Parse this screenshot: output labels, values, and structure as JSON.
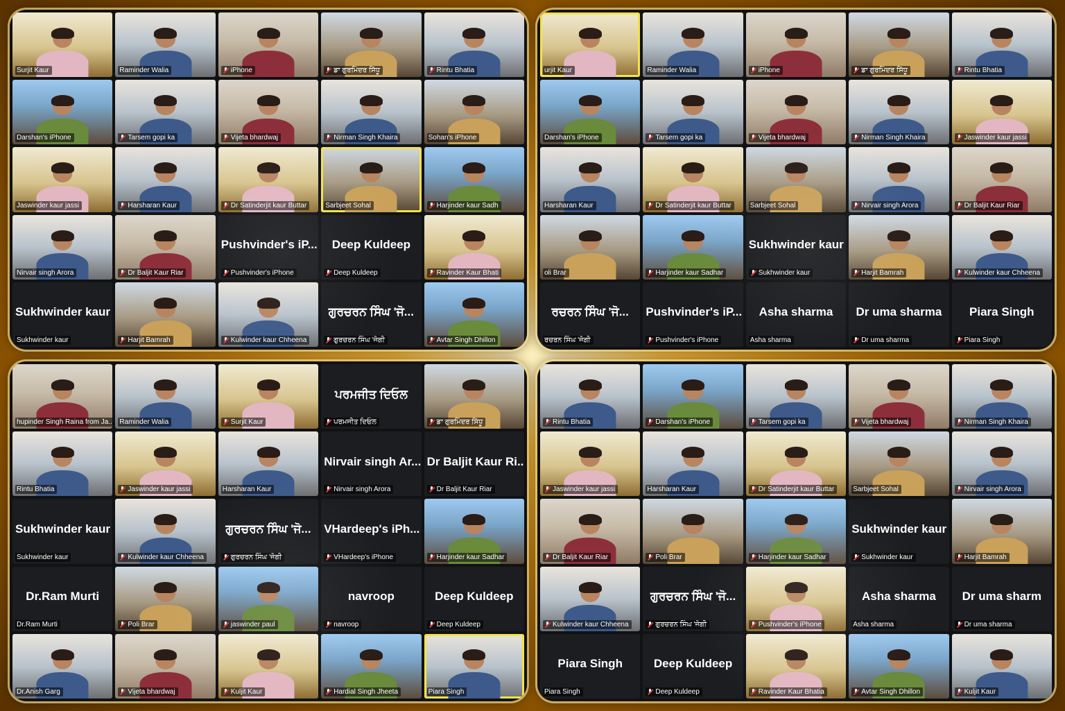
{
  "panels": [
    {
      "tiles": [
        {
          "type": "video",
          "name": "Surjit Kaur",
          "muted": false,
          "v": "v4"
        },
        {
          "type": "video",
          "name": "Raminder Walia",
          "muted": false,
          "v": "v2"
        },
        {
          "type": "video",
          "name": "iPhone",
          "muted": true,
          "v": "v1"
        },
        {
          "type": "video",
          "name": "ਡਾ ਗੁਰਮਿੰਦਰ ਸਿੱਧੂ",
          "muted": true,
          "v": "v3"
        },
        {
          "type": "video",
          "name": "Rintu Bhatia",
          "muted": true,
          "v": "v2"
        },
        {
          "type": "video",
          "name": "Darshan's iPhone",
          "muted": false,
          "v": "v5"
        },
        {
          "type": "video",
          "name": "Tarsem gopi ka",
          "muted": true,
          "v": "v2"
        },
        {
          "type": "video",
          "name": "Vijeta bhardwaj",
          "muted": true,
          "v": "v1"
        },
        {
          "type": "video",
          "name": "Nirman Singh Khaira",
          "muted": true,
          "v": "v2"
        },
        {
          "type": "video",
          "name": "Sohan's iPhone",
          "muted": false,
          "v": "v3"
        },
        {
          "type": "video",
          "name": "Jaswinder kaur jassi",
          "muted": false,
          "v": "v4"
        },
        {
          "type": "video",
          "name": "Harsharan Kaur",
          "muted": true,
          "v": "v2"
        },
        {
          "type": "video",
          "name": "Dr Satinderjit kaur Buttar",
          "muted": true,
          "v": "v4"
        },
        {
          "type": "video",
          "name": "Sarbjeet Sohal",
          "muted": false,
          "v": "v3",
          "active": true
        },
        {
          "type": "video",
          "name": "Harjinder kaur Sadh",
          "muted": true,
          "v": "v5"
        },
        {
          "type": "video",
          "name": "Nirvair singh Arora",
          "muted": false,
          "v": "v2"
        },
        {
          "type": "video",
          "name": "Dr Baljit Kaur Riar",
          "muted": true,
          "v": "v1"
        },
        {
          "type": "name",
          "big": "Pushvinder's iP...",
          "name": "Pushvinder's iPhone",
          "muted": true
        },
        {
          "type": "name",
          "big": "Deep Kuldeep",
          "name": "Deep Kuldeep",
          "muted": true
        },
        {
          "type": "video",
          "name": "Ravinder Kaur Bhati",
          "muted": true,
          "v": "v4"
        },
        {
          "type": "name",
          "big": "Sukhwinder kaur",
          "name": "Sukhwinder kaur",
          "muted": false
        },
        {
          "type": "video",
          "name": "Harjit Bamrah",
          "muted": true,
          "v": "v3"
        },
        {
          "type": "video",
          "name": "Kulwinder kaur Chheena",
          "muted": true,
          "v": "v2"
        },
        {
          "type": "name",
          "big": "ਗੁਰਚਰਨ ਸਿੰਘ 'ਜੋ...",
          "name": "ਗੁਰਚਰਨ ਸਿੰਘ 'ਜੋਗੀ",
          "muted": true
        },
        {
          "type": "video",
          "name": "Avtar Singh Dhillon",
          "muted": true,
          "v": "v5"
        }
      ]
    },
    {
      "tiles": [
        {
          "type": "video",
          "name": "urjit Kaur",
          "muted": false,
          "v": "v4",
          "active": true
        },
        {
          "type": "video",
          "name": "Raminder Walia",
          "muted": false,
          "v": "v2"
        },
        {
          "type": "video",
          "name": "iPhone",
          "muted": true,
          "v": "v1"
        },
        {
          "type": "video",
          "name": "ਡਾ ਗੁਰਮਿੰਦਰ ਸਿੱਧੂ",
          "muted": true,
          "v": "v3"
        },
        {
          "type": "video",
          "name": "Rintu Bhatia",
          "muted": true,
          "v": "v2"
        },
        {
          "type": "video",
          "name": "Darshan's iPhone",
          "muted": false,
          "v": "v5"
        },
        {
          "type": "video",
          "name": "Tarsem gopi ka",
          "muted": true,
          "v": "v2"
        },
        {
          "type": "video",
          "name": "Vijeta bhardwaj",
          "muted": true,
          "v": "v1"
        },
        {
          "type": "video",
          "name": "Nirman Singh Khaira",
          "muted": true,
          "v": "v2"
        },
        {
          "type": "video",
          "name": "Jaswinder kaur jassi",
          "muted": true,
          "v": "v4"
        },
        {
          "type": "video",
          "name": "Harsharan Kaur",
          "muted": false,
          "v": "v2"
        },
        {
          "type": "video",
          "name": "Dr Satinderjit kaur Buttar",
          "muted": true,
          "v": "v4"
        },
        {
          "type": "video",
          "name": "Sarbjeet Sohal",
          "muted": false,
          "v": "v3"
        },
        {
          "type": "video",
          "name": "Nirvair singh Arora",
          "muted": true,
          "v": "v2"
        },
        {
          "type": "video",
          "name": "Dr Baljit Kaur Riar",
          "muted": true,
          "v": "v1"
        },
        {
          "type": "video",
          "name": "oli Brar",
          "muted": false,
          "v": "v3"
        },
        {
          "type": "video",
          "name": "Harjinder kaur Sadhar",
          "muted": true,
          "v": "v5"
        },
        {
          "type": "name",
          "big": "Sukhwinder kaur",
          "name": "Sukhwinder kaur",
          "muted": true
        },
        {
          "type": "video",
          "name": "Harjit Bamrah",
          "muted": true,
          "v": "v3"
        },
        {
          "type": "video",
          "name": "Kulwinder kaur Chheena",
          "muted": true,
          "v": "v2"
        },
        {
          "type": "name",
          "big": "ਰਚਰਨ ਸਿੰਘ 'ਜੋ...",
          "name": "ਰਚਰਨ ਸਿੰਘ 'ਜੋਗੀ",
          "muted": false
        },
        {
          "type": "name",
          "big": "Pushvinder's iP...",
          "name": "Pushvinder's iPhone",
          "muted": true
        },
        {
          "type": "name",
          "big": "Asha sharma",
          "name": "Asha sharma",
          "muted": false
        },
        {
          "type": "name",
          "big": "Dr uma sharma",
          "name": "Dr uma sharma",
          "muted": true
        },
        {
          "type": "name",
          "big": "Piara Singh",
          "name": "Piara Singh",
          "muted": true
        }
      ]
    },
    {
      "tiles": [
        {
          "type": "video",
          "name": "hupinder Singh Raina from Ja...",
          "muted": false,
          "v": "v1"
        },
        {
          "type": "video",
          "name": "Raminder Walia",
          "muted": false,
          "v": "v2"
        },
        {
          "type": "video",
          "name": "Surjit Kaur",
          "muted": true,
          "v": "v4"
        },
        {
          "type": "name",
          "big": "ਪਰਮਜੀਤ ਦਿਓਲ",
          "name": "ਪਰਮਜੀਤ ਦਿਓਲ",
          "muted": true
        },
        {
          "type": "video",
          "name": "ਡਾ ਗੁਰਮਿੰਦਰ ਸਿੱਧੂ",
          "muted": true,
          "v": "v3"
        },
        {
          "type": "video",
          "name": "Rintu Bhatia",
          "muted": false,
          "v": "v2"
        },
        {
          "type": "video",
          "name": "Jaswinder kaur jassi",
          "muted": true,
          "v": "v4"
        },
        {
          "type": "video",
          "name": "Harsharan Kaur",
          "muted": false,
          "v": "v2"
        },
        {
          "type": "name",
          "big": "Nirvair singh Ar...",
          "name": "Nirvair singh Arora",
          "muted": true
        },
        {
          "type": "name",
          "big": "Dr Baljit Kaur Ri...",
          "name": "Dr Baljit Kaur Riar",
          "muted": true
        },
        {
          "type": "name",
          "big": "Sukhwinder kaur",
          "name": "Sukhwinder kaur",
          "muted": false
        },
        {
          "type": "video",
          "name": "Kulwinder kaur Chheena",
          "muted": true,
          "v": "v2"
        },
        {
          "type": "name",
          "big": "ਗੁਰਚਰਨ ਸਿੰਘ 'ਜੋ...",
          "name": "ਗੁਰਚਰਨ ਸਿੰਘ 'ਜੋਗੀ",
          "muted": true
        },
        {
          "type": "name",
          "big": "VHardeep's iPh...",
          "name": "VHardeep's iPhone",
          "muted": true
        },
        {
          "type": "video",
          "name": "Harjinder kaur Sadhar",
          "muted": true,
          "v": "v5"
        },
        {
          "type": "name",
          "big": "Dr.Ram Murti",
          "name": "Dr.Ram Murti",
          "muted": false
        },
        {
          "type": "video",
          "name": "Poli Brar",
          "muted": true,
          "v": "v3"
        },
        {
          "type": "video",
          "name": "jaswinder paul",
          "muted": true,
          "v": "v5"
        },
        {
          "type": "name",
          "big": "navroop",
          "name": "navroop",
          "muted": true
        },
        {
          "type": "name",
          "big": "Deep Kuldeep",
          "name": "Deep Kuldeep",
          "muted": true
        },
        {
          "type": "video",
          "name": "Dr.Anish Garg",
          "muted": false,
          "v": "v2"
        },
        {
          "type": "video",
          "name": "Vijeta bhardwaj",
          "muted": true,
          "v": "v1"
        },
        {
          "type": "video",
          "name": "Kuljit Kaur",
          "muted": true,
          "v": "v4"
        },
        {
          "type": "video",
          "name": "Hardial Singh Jheeta",
          "muted": true,
          "v": "v5"
        },
        {
          "type": "video",
          "name": "Piara Singh",
          "muted": false,
          "v": "v2",
          "active": true
        }
      ]
    },
    {
      "tiles": [
        {
          "type": "video",
          "name": "Rintu Bhatia",
          "muted": true,
          "v": "v2"
        },
        {
          "type": "video",
          "name": "Darshan's iPhone",
          "muted": true,
          "v": "v5"
        },
        {
          "type": "video",
          "name": "Tarsem gopi ka",
          "muted": true,
          "v": "v2"
        },
        {
          "type": "video",
          "name": "Vijeta bhardwaj",
          "muted": true,
          "v": "v1"
        },
        {
          "type": "video",
          "name": "Nirman Singh Khaira",
          "muted": true,
          "v": "v2"
        },
        {
          "type": "video",
          "name": "Jaswinder kaur jassi",
          "muted": true,
          "v": "v4"
        },
        {
          "type": "video",
          "name": "Harsharan Kaur",
          "muted": false,
          "v": "v2"
        },
        {
          "type": "video",
          "name": "Dr Satinderjit kaur Buttar",
          "muted": true,
          "v": "v4"
        },
        {
          "type": "video",
          "name": "Sarbjeet Sohal",
          "muted": false,
          "v": "v3"
        },
        {
          "type": "video",
          "name": "Nirvair singh Arora",
          "muted": true,
          "v": "v2"
        },
        {
          "type": "video",
          "name": "Dr Baljit Kaur Riar",
          "muted": true,
          "v": "v1"
        },
        {
          "type": "video",
          "name": "Poli Brar",
          "muted": true,
          "v": "v3"
        },
        {
          "type": "video",
          "name": "Harjinder kaur Sadhar",
          "muted": true,
          "v": "v5"
        },
        {
          "type": "name",
          "big": "Sukhwinder kaur",
          "name": "Sukhwinder kaur",
          "muted": true
        },
        {
          "type": "video",
          "name": "Harjit Bamrah",
          "muted": true,
          "v": "v3"
        },
        {
          "type": "video",
          "name": "Kulwinder kaur Chheena",
          "muted": true,
          "v": "v2"
        },
        {
          "type": "name",
          "big": "ਗੁਰਚਰਨ ਸਿੰਘ 'ਜੋ...",
          "name": "ਗੁਰਚਰਨ ਸਿੰਘ 'ਜੋਗੀ",
          "muted": true
        },
        {
          "type": "video",
          "name": "Pushvinder's iPhone",
          "muted": true,
          "v": "v4"
        },
        {
          "type": "name",
          "big": "Asha sharma",
          "name": "Asha sharma",
          "muted": false
        },
        {
          "type": "name",
          "big": "Dr uma sharm",
          "name": "Dr uma sharma",
          "muted": true
        },
        {
          "type": "name",
          "big": "Piara Singh",
          "name": "Piara Singh",
          "muted": false
        },
        {
          "type": "name",
          "big": "Deep Kuldeep",
          "name": "Deep Kuldeep",
          "muted": true
        },
        {
          "type": "video",
          "name": "Ravinder Kaur Bhatia",
          "muted": true,
          "v": "v4"
        },
        {
          "type": "video",
          "name": "Avtar Singh Dhillon",
          "muted": true,
          "v": "v5"
        },
        {
          "type": "video",
          "name": "Kuljit Kaur",
          "muted": true,
          "v": "v2"
        }
      ]
    }
  ],
  "colors": {
    "tile_bg": "#1c1d20",
    "panel_bg": "#111214",
    "active_speaker": "#f2e34a",
    "muted_icon": "#e33b3b",
    "frame_gold": "#c98412"
  },
  "icons": {
    "muted": "microphone-muted-icon"
  }
}
